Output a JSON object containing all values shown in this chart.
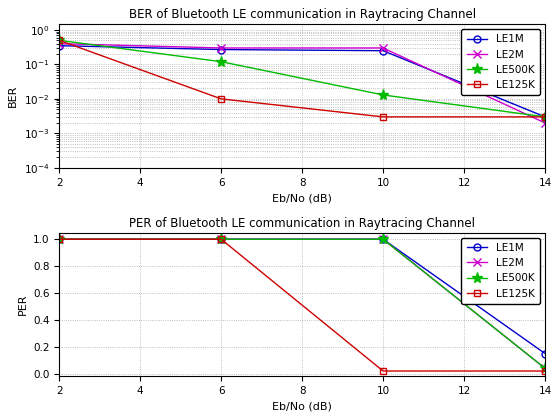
{
  "ber_title": "BER of Bluetooth LE communication in Raytracing Channel",
  "per_title": "PER of Bluetooth LE communication in Raytracing Channel",
  "xlabel": "Eb/No (dB)",
  "ber_ylabel": "BER",
  "per_ylabel": "PER",
  "x": [
    2,
    6,
    10,
    14
  ],
  "ber": {
    "LE1M": [
      0.35,
      0.27,
      0.25,
      0.003
    ],
    "LE2M": [
      0.4,
      0.3,
      0.3,
      0.002
    ],
    "LE500K": [
      0.5,
      0.12,
      0.013,
      0.003
    ],
    "LE125K": [
      0.5,
      0.01,
      0.003,
      0.003
    ]
  },
  "per": {
    "LE1M": [
      1.0,
      1.0,
      1.0,
      0.15
    ],
    "LE2M": [
      1.0,
      1.0,
      1.0,
      0.04
    ],
    "LE500K": [
      1.0,
      1.0,
      1.0,
      0.04
    ],
    "LE125K": [
      1.0,
      1.0,
      0.02,
      0.02
    ]
  },
  "colors": {
    "LE1M": "#0000cc",
    "LE2M": "#cc00cc",
    "LE500K": "#00bb00",
    "LE125K": "#cc0000"
  },
  "markers": {
    "LE1M": "o",
    "LE2M": "x",
    "LE500K": "*",
    "LE125K": "s"
  },
  "markersizes": {
    "LE1M": 5,
    "LE2M": 6,
    "LE500K": 8,
    "LE125K": 5
  },
  "markerfacecolors": {
    "LE1M": "none",
    "LE2M": "#cc00cc",
    "LE500K": "#00bb00",
    "LE125K": "none"
  },
  "xlim": [
    2,
    14
  ],
  "ber_ylim": [
    0.0001,
    1.5
  ],
  "per_ylim": [
    -0.02,
    1.05
  ],
  "xticks": [
    2,
    4,
    6,
    8,
    10,
    12,
    14
  ],
  "background_color": "#ffffff"
}
